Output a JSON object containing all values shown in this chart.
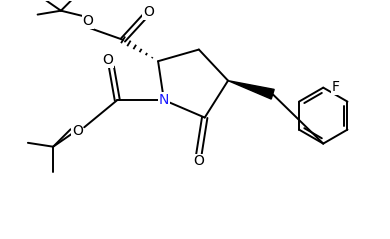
{
  "bg_color": "#ffffff",
  "line_color": "#000000",
  "N_color": "#1a1aff",
  "O_color": "#000000",
  "lw": 1.4,
  "figsize": [
    3.9,
    2.39
  ],
  "dpi": 100,
  "xlim": [
    0,
    10
  ],
  "ylim": [
    0,
    6.1
  ]
}
